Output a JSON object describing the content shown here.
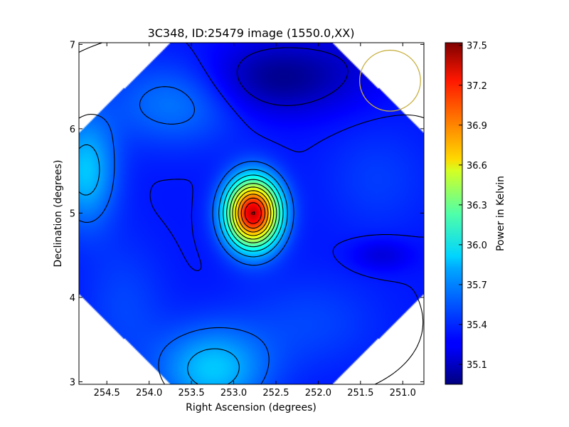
{
  "chart_data": {
    "type": "heatmap",
    "title": "3C348, ID:25479 image (1550.0,XX)",
    "xlabel": "Right Ascension (degrees)",
    "ylabel": "Declination (degrees)",
    "colorbar_label": "Power in Kelvin",
    "x_ticks": [
      "254.5",
      "254.0",
      "253.5",
      "253.0",
      "252.5",
      "252.0",
      "251.5",
      "251.0"
    ],
    "x_tick_values": [
      254.5,
      254.0,
      253.5,
      253.0,
      252.5,
      252.0,
      251.5,
      251.0
    ],
    "y_ticks": [
      "3",
      "4",
      "5",
      "6",
      "7"
    ],
    "y_tick_values": [
      3,
      4,
      5,
      6,
      7
    ],
    "colorbar_ticks": [
      "35.1",
      "35.4",
      "35.7",
      "36.0",
      "36.3",
      "36.6",
      "36.9",
      "37.2",
      "37.5"
    ],
    "colorbar_tick_values": [
      35.1,
      35.4,
      35.7,
      36.0,
      36.3,
      36.6,
      36.9,
      37.2,
      37.5
    ],
    "xlim": [
      254.83,
      250.75
    ],
    "ylim": [
      2.97,
      7.02
    ],
    "clim": [
      34.95,
      37.52
    ],
    "colormap": "jet",
    "peak": {
      "ra": 252.77,
      "dec": 5.0,
      "value": 37.45
    },
    "secondary_peaks": [
      {
        "ra": 253.25,
        "dec": 3.15,
        "value": 35.8
      },
      {
        "ra": 254.75,
        "dec": 5.5,
        "value": 35.8
      }
    ],
    "minima": [
      {
        "ra": 252.5,
        "dec": 6.6,
        "value": 35.0
      },
      {
        "ra": 251.25,
        "dec": 4.5,
        "value": 35.2
      }
    ],
    "annotation_circle": {
      "ra": 251.15,
      "dec": 6.57,
      "radius_deg": 0.36,
      "color": "#c8b040"
    },
    "contours": true,
    "grid": false
  }
}
